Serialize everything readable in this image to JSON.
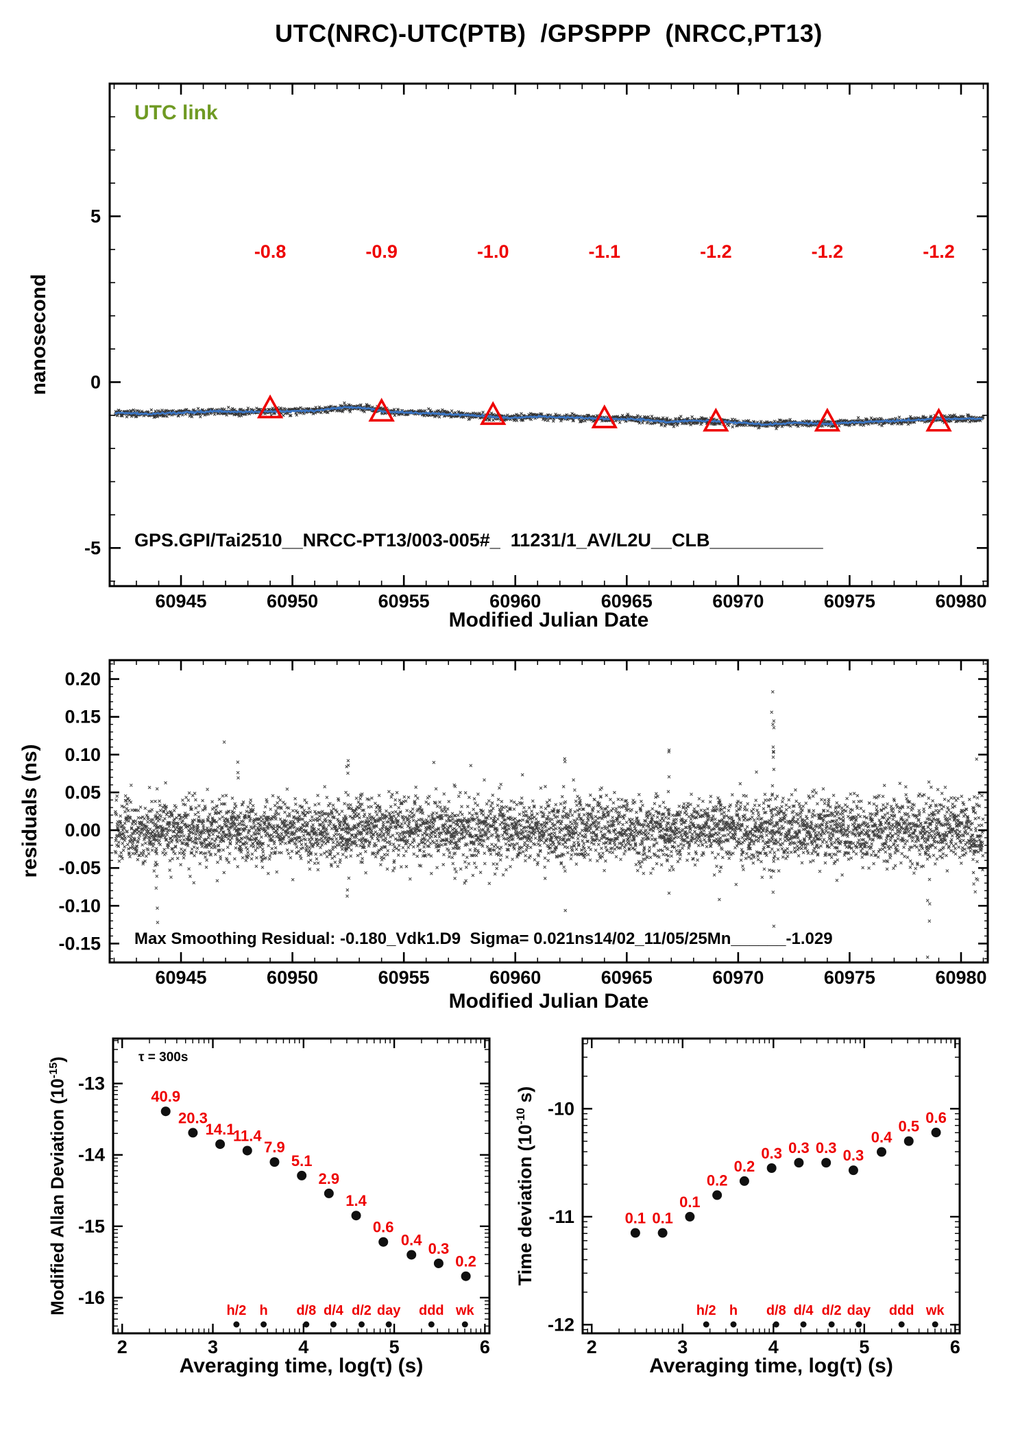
{
  "title": "UTC(NRC)-UTC(PTB)  /GPSPPP  (NRCC,PT13)",
  "colors": {
    "series_blue": "#3a75c4",
    "accent_red": "#ee0000",
    "utc_green": "#6f9a23",
    "marker_black": "#101010"
  },
  "tau_markers": {
    "labels": [
      "h/2",
      "h",
      "d/8",
      "d/4",
      "d/2",
      "day",
      "ddd",
      "wk"
    ],
    "log_tau": [
      3.26,
      3.56,
      4.03,
      4.33,
      4.64,
      4.94,
      5.41,
      5.78
    ]
  },
  "chart_data": [
    {
      "id": "utc-link",
      "type": "line",
      "legend": "UTC link",
      "xlabel": "Modified Julian Date",
      "ylabel": "nanosecond",
      "xlim": [
        60941.8,
        60981.2
      ],
      "ylim": [
        -6.15,
        9.0
      ],
      "xticks": {
        "values": [
          60945,
          60950,
          60955,
          60960,
          60965,
          60970,
          60975,
          60980
        ],
        "labels": [
          "60945",
          "60950",
          "60955",
          "60960",
          "60965",
          "60970",
          "60975",
          "60980"
        ]
      },
      "yticks": {
        "values": [
          5,
          0,
          -5
        ],
        "labels": [
          "5",
          "0",
          "-5"
        ]
      },
      "series_trend": [
        [
          60942.0,
          -0.92
        ],
        [
          60943.5,
          -0.96
        ],
        [
          60945.0,
          -0.92
        ],
        [
          60946.5,
          -0.88
        ],
        [
          60948.0,
          -0.9
        ],
        [
          60949.5,
          -0.88
        ],
        [
          60951.0,
          -0.86
        ],
        [
          60952.3,
          -0.76
        ],
        [
          60953.2,
          -0.78
        ],
        [
          60954.3,
          -0.9
        ],
        [
          60955.5,
          -0.92
        ],
        [
          60957.0,
          -0.97
        ],
        [
          60958.5,
          -1.02
        ],
        [
          60959.8,
          -1.08
        ],
        [
          60961.0,
          -1.04
        ],
        [
          60962.5,
          -1.07
        ],
        [
          60964.0,
          -1.1
        ],
        [
          60965.5,
          -1.12
        ],
        [
          60966.8,
          -1.2
        ],
        [
          60968.0,
          -1.16
        ],
        [
          60969.5,
          -1.2
        ],
        [
          60971.3,
          -1.28
        ],
        [
          60972.5,
          -1.22
        ],
        [
          60974.0,
          -1.26
        ],
        [
          60975.5,
          -1.2
        ],
        [
          60977.0,
          -1.17
        ],
        [
          60978.5,
          -1.12
        ],
        [
          60980.0,
          -1.1
        ],
        [
          60981.0,
          -1.1
        ]
      ],
      "noise_sd_ns": 0.05,
      "daily_values": {
        "mjd": [
          60949,
          60954,
          60959,
          60964,
          60969,
          60974,
          60979
        ],
        "ns": [
          -0.8,
          -0.9,
          -1.0,
          -1.1,
          -1.2,
          -1.2,
          -1.2
        ],
        "labels": [
          "-0.8",
          "-0.9",
          "-1.0",
          "-1.1",
          "-1.2",
          "-1.2",
          "-1.2"
        ],
        "label_y_ns": 3.75
      },
      "annotation": "GPS.GPI/Tai2510__NRCC-PT13/003-005#_  11231/1_AV/L2U__CLB___________"
    },
    {
      "id": "residuals",
      "type": "scatter",
      "xlabel": "Modified Julian Date",
      "ylabel": "residuals (ns)",
      "xlim": [
        60941.8,
        60981.2
      ],
      "ylim": [
        -0.175,
        0.225
      ],
      "xticks": {
        "values": [
          60945,
          60950,
          60955,
          60960,
          60965,
          60970,
          60975,
          60980
        ],
        "labels": [
          "60945",
          "60950",
          "60955",
          "60960",
          "60965",
          "60970",
          "60975",
          "60980"
        ]
      },
      "yticks": {
        "values": [
          0.2,
          0.15,
          0.1,
          0.05,
          0.0,
          -0.05,
          -0.1,
          -0.15
        ],
        "labels": [
          "0.20",
          "0.15",
          "0.10",
          "0.05",
          "0.00",
          "-0.05",
          "-0.10",
          "-0.15"
        ]
      },
      "noise_sd_ns": 0.021,
      "max_residual_ns": -0.18,
      "annotation": "Max Smoothing Residual: -0.180_Vdk1.D9  Sigma= 0.021ns14/02_11/05/25Mn______-1.029"
    },
    {
      "id": "mdev",
      "type": "scatter",
      "note": "τ = 300s",
      "xlabel": "Averaging time, log(τ) (s)",
      "ylabel_prefix": "Modified Allan Deviation (10",
      "ylabel_exp": "-15",
      "ylabel_suffix": ")",
      "xlim": [
        1.9,
        6.05
      ],
      "ylim": [
        -16.5,
        -12.37
      ],
      "xticks": {
        "values": [
          2,
          3,
          4,
          5,
          6
        ],
        "labels": [
          "2",
          "3",
          "4",
          "5",
          "6"
        ]
      },
      "yticks": {
        "values": [
          -13,
          -14,
          -15,
          -16
        ],
        "labels": [
          "-13",
          "-14",
          "-15",
          "-16"
        ]
      },
      "points": {
        "log_tau": [
          2.48,
          2.78,
          3.08,
          3.38,
          3.68,
          3.98,
          4.28,
          4.58,
          4.88,
          5.19,
          5.49,
          5.79
        ],
        "log_dev": [
          -13.39,
          -13.69,
          -13.85,
          -13.94,
          -14.1,
          -14.29,
          -14.54,
          -14.85,
          -15.22,
          -15.4,
          -15.52,
          -15.7
        ],
        "value_labels": [
          "40.9",
          "20.3",
          "14.1",
          "11.4",
          "7.9",
          "5.1",
          "2.9",
          "1.4",
          "0.6",
          "0.4",
          "0.3",
          "0.2"
        ]
      }
    },
    {
      "id": "tdev",
      "type": "scatter",
      "xlabel": "Averaging time, log(τ) (s)",
      "ylabel_prefix": "Time deviation (10",
      "ylabel_exp": "-10",
      "ylabel_suffix": " s)",
      "xlim": [
        1.9,
        6.05
      ],
      "ylim": [
        -12.08,
        -9.35
      ],
      "xticks": {
        "values": [
          2,
          3,
          4,
          5,
          6
        ],
        "labels": [
          "2",
          "3",
          "4",
          "5",
          "6"
        ]
      },
      "yticks": {
        "values": [
          -10,
          -11,
          -12
        ],
        "labels": [
          "-10",
          "-11",
          "-12"
        ]
      },
      "points": {
        "log_tau": [
          2.48,
          2.78,
          3.08,
          3.38,
          3.68,
          3.98,
          4.28,
          4.58,
          4.88,
          5.19,
          5.49,
          5.79
        ],
        "log_dev": [
          -11.15,
          -11.15,
          -11.0,
          -10.8,
          -10.67,
          -10.55,
          -10.5,
          -10.5,
          -10.57,
          -10.4,
          -10.3,
          -10.22
        ],
        "value_labels": [
          "0.1",
          "0.1",
          "0.1",
          "0.2",
          "0.2",
          "0.3",
          "0.3",
          "0.3",
          "0.3",
          "0.4",
          "0.5",
          "0.6"
        ]
      }
    }
  ]
}
